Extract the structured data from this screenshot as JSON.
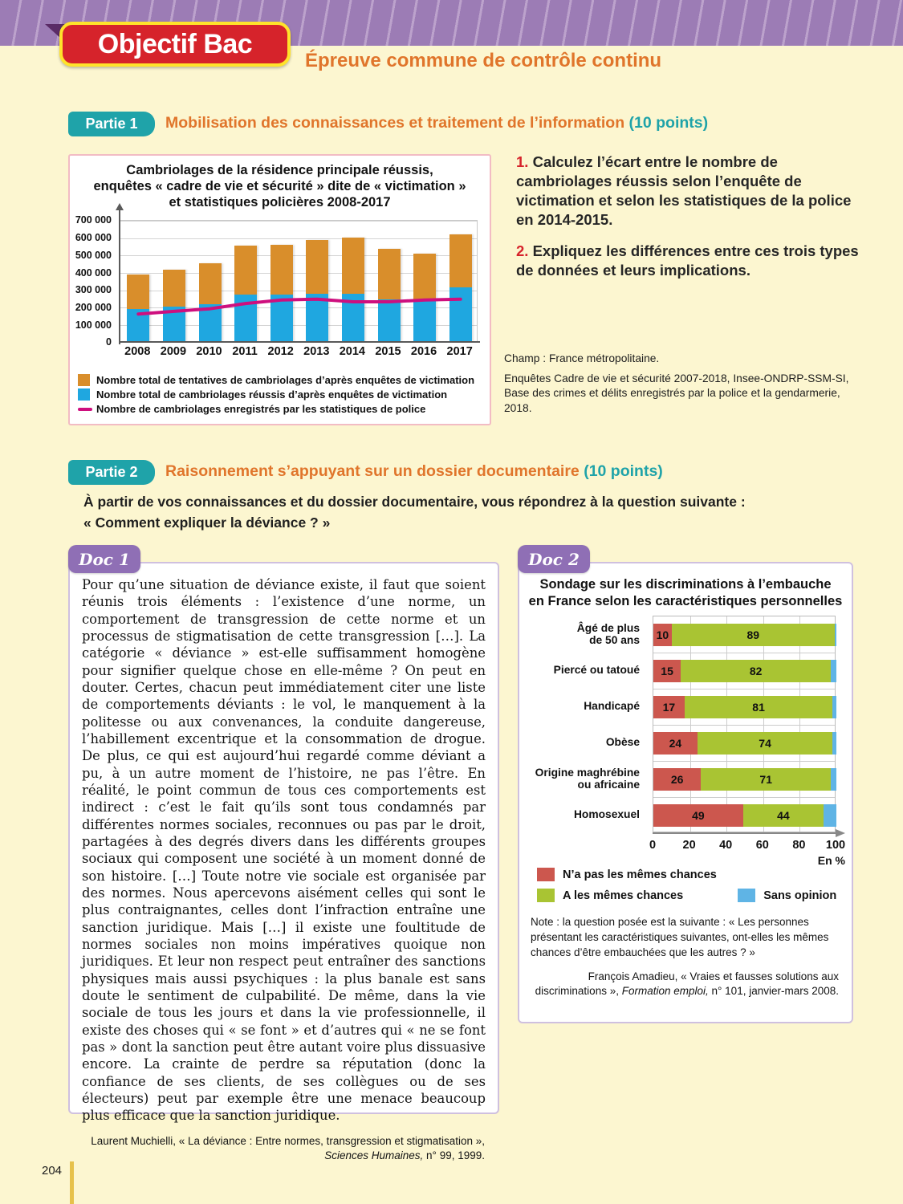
{
  "page": {
    "number": "204"
  },
  "header": {
    "badge": "Objectif Bac",
    "subtitle": "Épreuve commune de contrôle continu"
  },
  "part1": {
    "badge": "Partie 1",
    "title": "Mobilisation des connaissances et traitement de l’information",
    "points": "(10 points)",
    "questions": [
      {
        "num": "1.",
        "text": " Calculez l’écart entre le nombre de cambriolages réussis selon l’enquête de victimation et selon les statistiques de la police en 2014-2015."
      },
      {
        "num": "2.",
        "text": " Expliquez les différences entre ces trois types de données et leurs implications."
      }
    ],
    "champ": "Champ : France métropolitaine.",
    "source": "Enquêtes Cadre de vie et sécurité 2007-2018, Insee-ONDRP-SSM-SI, Base des crimes et délits enregistrés par la police et la gendarmerie, 2018."
  },
  "part2": {
    "badge": "Partie 2",
    "title": "Raisonnement s’appuyant sur un dossier documentaire",
    "points": "(10 points)",
    "intro": "À partir de vos connaissances et du dossier documentaire, vous répondrez à la question suivante :\n« Comment expliquer la déviance ? »"
  },
  "doc1": {
    "badge": "Doc 1",
    "body": "Pour qu’une situation de déviance existe, il faut que soient réunis trois éléments : l’existence d’une norme, un comportement de transgression de cette norme et un processus de stigmatisation de cette transgression […]. La catégorie « déviance » est-elle suffisamment homogène pour signifier quelque chose en elle-même ? On peut en douter. Certes, chacun peut immédiatement citer une liste de comportements déviants : le vol, le manquement à la politesse ou aux convenances, la conduite dangereuse, l’habillement excentrique et la consommation de drogue. De plus, ce qui est aujourd’hui regardé comme déviant a pu, à un autre moment de l’histoire, ne pas l’être. En réalité, le point commun de tous ces comportements est indirect : c’est le fait qu’ils sont tous condamnés par différentes normes sociales, reconnues ou pas par le droit, partagées à des degrés divers dans les différents groupes sociaux qui composent une société à un moment donné de son histoire. […] Toute notre vie sociale est organisée par des normes. Nous apercevons aisément celles qui sont le plus contraignantes, celles dont l’infraction entraîne une sanction juridique. Mais […] il existe une foultitude de normes sociales non moins impératives quoique non juridiques. Et leur non respect peut entraîner des sanctions physiques mais aussi psychiques : la plus banale est sans doute le sentiment de culpabilité. De même, dans la vie sociale de tous les jours et dans la vie professionnelle, il existe des choses qui « se font » et d’autres qui « ne se font pas » dont la sanction peut être autant voire plus dissuasive encore. La crainte de perdre sa réputation (donc la confiance de ses clients, de ses collègues ou de ses électeurs) peut par exemple être une menace beaucoup plus efficace que la sanction juridique.",
    "source_prefix": "Laurent Muchielli, « La déviance : Entre normes, transgression et stigmatisation », ",
    "source_italic": "Sciences Humaines,",
    "source_suffix": " n° 99, 1999."
  },
  "doc2": {
    "badge": "Doc 2",
    "note": "Note : la question posée est la suivante : « Les personnes présentant les caractéristiques suivantes, ont-elles les mêmes chances d’être embauchées que les autres ? »",
    "source_prefix": "François Amadieu, « Vraies et fausses solutions aux discriminations », ",
    "source_italic": "Formation emploi,",
    "source_suffix": " n° 101, janvier-mars 2008."
  },
  "chart_data": [
    {
      "type": "bar",
      "stacked": true,
      "title": "Cambriolages de la résidence principale réussis,\nenquêtes « cadre de vie et sécurité » dite de « victimation »\net statistiques policières 2008-2017",
      "categories": [
        "2008",
        "2009",
        "2010",
        "2011",
        "2012",
        "2013",
        "2014",
        "2015",
        "2016",
        "2017"
      ],
      "series": [
        {
          "name": "Nombre total de cambriolages réussis d’après enquêtes de victimation",
          "color": "#1FA7E0",
          "values": [
            185000,
            200000,
            215000,
            270000,
            270000,
            275000,
            275000,
            240000,
            240000,
            310000
          ]
        },
        {
          "name": "Nombre total de tentatives de cambriolages d’après enquêtes de victimation",
          "color": "#D98E2B",
          "values": [
            200000,
            210000,
            235000,
            280000,
            285000,
            305000,
            320000,
            290000,
            265000,
            305000
          ]
        }
      ],
      "line_series": {
        "name": "Nombre de cambriolages enregistrés par les statistiques de police",
        "color": "#CE0F7E",
        "values": [
          165000,
          180000,
          195000,
          225000,
          245000,
          250000,
          235000,
          235000,
          245000,
          250000
        ]
      },
      "ylim": [
        0,
        700000
      ],
      "ytick_step": 100000,
      "grid": true,
      "legend_position": "bottom"
    },
    {
      "type": "bar",
      "orientation": "horizontal",
      "stacked": true,
      "title": "Sondage sur les discriminations à l’embauche\nen France selon les caractéristiques personnelles",
      "categories": [
        "Âgé de plus\nde 50 ans",
        "Piercé ou tatoué",
        "Handicapé",
        "Obèse",
        "Origine maghrébine\nou africaine",
        "Homosexuel"
      ],
      "series": [
        {
          "name": "N’a pas les mêmes chances",
          "color": "#CC574E",
          "values": [
            10,
            15,
            17,
            24,
            26,
            49
          ]
        },
        {
          "name": "A les mêmes chances",
          "color": "#A9C433",
          "values": [
            89,
            82,
            81,
            74,
            71,
            44
          ]
        },
        {
          "name": "Sans opinion",
          "color": "#5FB4E5",
          "values": [
            1,
            3,
            2,
            2,
            3,
            7
          ]
        }
      ],
      "xlim": [
        0,
        100
      ],
      "xticks": [
        0,
        20,
        40,
        60,
        80,
        100
      ],
      "xlabel": "En %",
      "grid": true,
      "legend_position": "bottom"
    }
  ]
}
